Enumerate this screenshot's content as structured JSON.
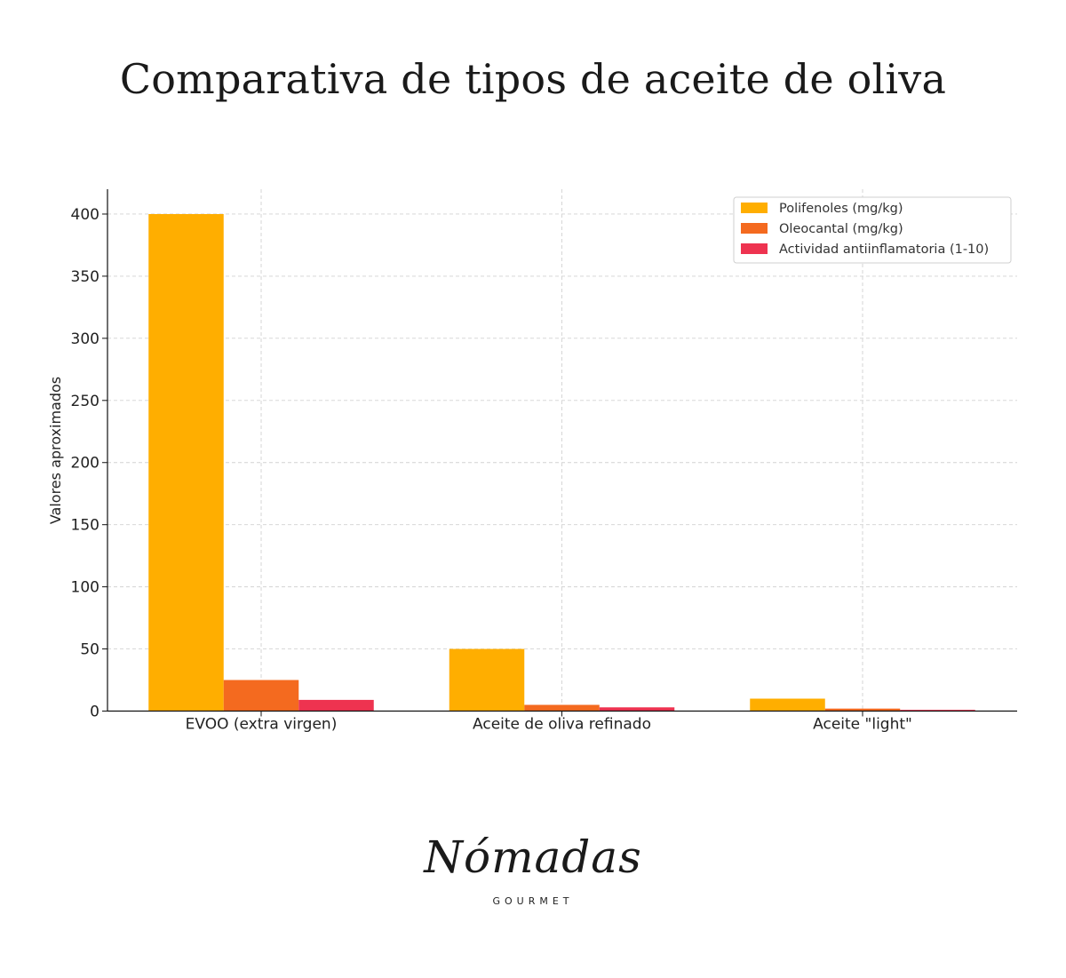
{
  "page": {
    "title": "Comparativa de tipos de aceite de oliva"
  },
  "brand": {
    "name": "Nómadas",
    "tagline": "GOURMET"
  },
  "chart_data": {
    "type": "bar",
    "title": "",
    "xlabel": "",
    "ylabel": "Valores aproximados",
    "categories": [
      "EVOO (extra virgen)",
      "Aceite de oliva refinado",
      "Aceite \"light\""
    ],
    "series": [
      {
        "name": "Polifenoles (mg/kg)",
        "values": [
          400,
          50,
          10
        ],
        "color": "#FFAE00"
      },
      {
        "name": "Oleocantal (mg/kg)",
        "values": [
          25,
          5,
          2
        ],
        "color": "#F46A1F"
      },
      {
        "name": "Actividad antiinflamatoria (1-10)",
        "values": [
          9,
          3,
          1
        ],
        "color": "#EE3350"
      }
    ],
    "ylim": [
      0,
      420
    ],
    "yticks": [
      0,
      50,
      100,
      150,
      200,
      250,
      300,
      350,
      400
    ],
    "grid": true,
    "legend": "top-right"
  }
}
